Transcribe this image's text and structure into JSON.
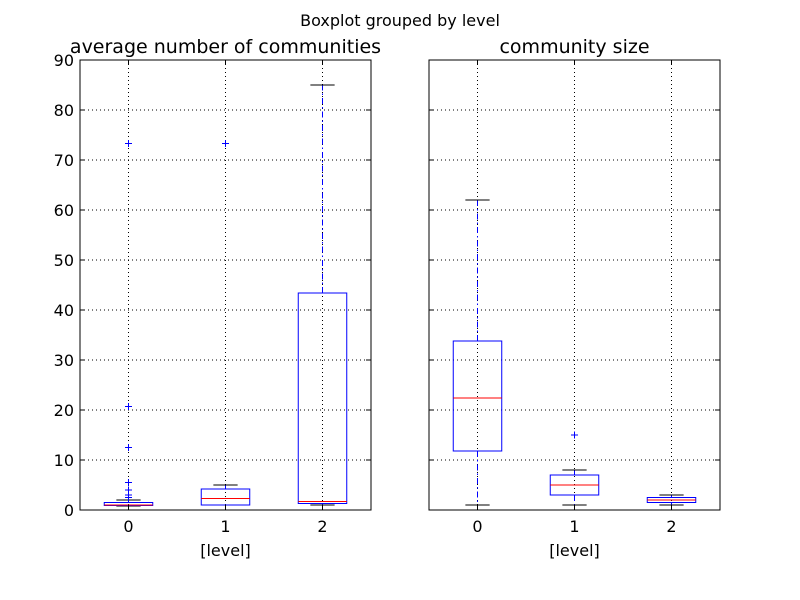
{
  "chart_data": {
    "suptitle": "Boxplot grouped by level",
    "type": "box",
    "colors": {
      "box": "#0000ff",
      "median": "#ff0000",
      "flier": "#0000ff",
      "grid": "#000000"
    },
    "grid": true,
    "panels": [
      {
        "title": "average number of communities",
        "xlabel": "[level]",
        "ylim": [
          0,
          90
        ],
        "yticks": [
          0,
          10,
          20,
          30,
          40,
          50,
          60,
          70,
          80,
          90
        ],
        "show_yticks": true,
        "categories": [
          "0",
          "1",
          "2"
        ],
        "boxes": [
          {
            "category": "0",
            "whislo": 0.8,
            "q1": 0.9,
            "med": 1.0,
            "q3": 1.5,
            "whishi": 2.0,
            "fliers": [
              2.5,
              3.0,
              4.0,
              5.5,
              12.5,
              20.7,
              73.3
            ]
          },
          {
            "category": "1",
            "whislo": 1.0,
            "q1": 1.0,
            "med": 2.3,
            "q3": 4.2,
            "whishi": 5.0,
            "fliers": [
              73.3
            ]
          },
          {
            "category": "2",
            "whislo": 1.0,
            "q1": 1.3,
            "med": 1.7,
            "q3": 43.4,
            "whishi": 85.0,
            "fliers": []
          }
        ]
      },
      {
        "title": "community size",
        "xlabel": "[level]",
        "ylim": [
          0,
          90
        ],
        "yticks": [
          0,
          10,
          20,
          30,
          40,
          50,
          60,
          70,
          80,
          90
        ],
        "show_yticks": false,
        "categories": [
          "0",
          "1",
          "2"
        ],
        "boxes": [
          {
            "category": "0",
            "whislo": 1.0,
            "q1": 11.8,
            "med": 22.4,
            "q3": 33.8,
            "whishi": 62.0,
            "fliers": []
          },
          {
            "category": "1",
            "whislo": 1.0,
            "q1": 3.0,
            "med": 5.0,
            "q3": 7.0,
            "whishi": 8.0,
            "fliers": [
              15.0
            ]
          },
          {
            "category": "2",
            "whislo": 1.0,
            "q1": 1.5,
            "med": 2.0,
            "q3": 2.5,
            "whishi": 3.0,
            "fliers": []
          }
        ]
      }
    ]
  }
}
